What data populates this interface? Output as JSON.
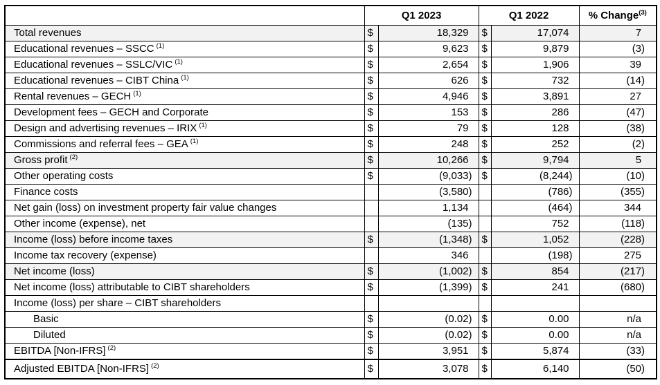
{
  "table": {
    "headers": {
      "label": "",
      "q1_2023": "Q1 2023",
      "q1_2022": "Q1 2022",
      "pct_change": "% Change",
      "pct_change_sup": "(3)"
    },
    "rows": [
      {
        "label": "Total revenues",
        "sup": "",
        "shaded": true,
        "indent": false,
        "thick_top": false,
        "d1": "$",
        "v1": "18,329",
        "d2": "$",
        "v2": "17,074",
        "pct": "7"
      },
      {
        "label": "Educational revenues – SSCC",
        "sup": "(1)",
        "shaded": false,
        "indent": false,
        "thick_top": false,
        "d1": "$",
        "v1": "9,623",
        "d2": "$",
        "v2": "9,879",
        "pct": "(3)"
      },
      {
        "label": "Educational revenues – SSLC/VIC",
        "sup": "(1)",
        "shaded": false,
        "indent": false,
        "thick_top": false,
        "d1": "$",
        "v1": "2,654",
        "d2": "$",
        "v2": "1,906",
        "pct": "39"
      },
      {
        "label": "Educational revenues – CIBT China",
        "sup": "(1)",
        "shaded": false,
        "indent": false,
        "thick_top": false,
        "d1": "$",
        "v1": "626",
        "d2": "$",
        "v2": "732",
        "pct": "(14)"
      },
      {
        "label": "Rental revenues – GECH",
        "sup": "(1)",
        "shaded": false,
        "indent": false,
        "thick_top": false,
        "d1": "$",
        "v1": "4,946",
        "d2": "$",
        "v2": "3,891",
        "pct": "27"
      },
      {
        "label": "Development fees – GECH and Corporate",
        "sup": "",
        "shaded": false,
        "indent": false,
        "thick_top": false,
        "d1": "$",
        "v1": "153",
        "d2": "$",
        "v2": "286",
        "pct": "(47)"
      },
      {
        "label": "Design and advertising revenues – IRIX",
        "sup": "(1)",
        "shaded": false,
        "indent": false,
        "thick_top": false,
        "d1": "$",
        "v1": "79",
        "d2": "$",
        "v2": "128",
        "pct": "(38)"
      },
      {
        "label": "Commissions and referral fees – GEA",
        "sup": "(1)",
        "shaded": false,
        "indent": false,
        "thick_top": false,
        "d1": "$",
        "v1": "248",
        "d2": "$",
        "v2": "252",
        "pct": "(2)"
      },
      {
        "label": "Gross profit",
        "sup": "(2)",
        "shaded": true,
        "indent": false,
        "thick_top": false,
        "d1": "$",
        "v1": "10,266",
        "d2": "$",
        "v2": "9,794",
        "pct": "5"
      },
      {
        "label": "Other operating costs",
        "sup": "",
        "shaded": false,
        "indent": false,
        "thick_top": false,
        "d1": "$",
        "v1": "(9,033)",
        "d2": "$",
        "v2": "(8,244)",
        "pct": "(10)"
      },
      {
        "label": "Finance costs",
        "sup": "",
        "shaded": false,
        "indent": false,
        "thick_top": false,
        "d1": "",
        "v1": "(3,580)",
        "d2": "",
        "v2": "(786)",
        "pct": "(355)"
      },
      {
        "label": "Net gain (loss) on investment property fair value changes",
        "sup": "",
        "shaded": false,
        "indent": false,
        "thick_top": false,
        "d1": "",
        "v1": "1,134",
        "d2": "",
        "v2": "(464)",
        "pct": "344"
      },
      {
        "label": "Other income (expense), net",
        "sup": "",
        "shaded": false,
        "indent": false,
        "thick_top": false,
        "d1": "",
        "v1": "(135)",
        "d2": "",
        "v2": "752",
        "pct": "(118)"
      },
      {
        "label": "Income (loss) before income taxes",
        "sup": "",
        "shaded": true,
        "indent": false,
        "thick_top": false,
        "d1": "$",
        "v1": "(1,348)",
        "d2": "$",
        "v2": "1,052",
        "pct": "(228)"
      },
      {
        "label": "Income tax recovery (expense)",
        "sup": "",
        "shaded": false,
        "indent": false,
        "thick_top": false,
        "d1": "",
        "v1": "346",
        "d2": "",
        "v2": "(198)",
        "pct": "275"
      },
      {
        "label": "Net income (loss)",
        "sup": "",
        "shaded": true,
        "indent": false,
        "thick_top": false,
        "d1": "$",
        "v1": "(1,002)",
        "d2": "$",
        "v2": "854",
        "pct": "(217)"
      },
      {
        "label": "Net income (loss) attributable to CIBT shareholders",
        "sup": "",
        "shaded": false,
        "indent": false,
        "thick_top": false,
        "d1": "$",
        "v1": "(1,399)",
        "d2": "$",
        "v2": "241",
        "pct": "(680)"
      },
      {
        "label": "Income (loss) per share – CIBT shareholders",
        "sup": "",
        "shaded": false,
        "indent": false,
        "thick_top": false,
        "d1": "",
        "v1": "",
        "d2": "",
        "v2": "",
        "pct": ""
      },
      {
        "label": "Basic",
        "sup": "",
        "shaded": false,
        "indent": true,
        "thick_top": false,
        "d1": "$",
        "v1": "(0.02)",
        "d2": "$",
        "v2": "0.00",
        "pct": "n/a"
      },
      {
        "label": "Diluted",
        "sup": "",
        "shaded": false,
        "indent": true,
        "thick_top": false,
        "d1": "$",
        "v1": "(0.02)",
        "d2": "$",
        "v2": "0.00",
        "pct": "n/a"
      },
      {
        "label": "EBITDA [Non-IFRS]",
        "sup": "(2)",
        "shaded": false,
        "indent": false,
        "thick_top": false,
        "d1": "$",
        "v1": "3,951",
        "d2": "$",
        "v2": "5,874",
        "pct": "(33)"
      },
      {
        "label": "Adjusted EBITDA [Non-IFRS]",
        "sup": "(2)",
        "shaded": false,
        "indent": false,
        "thick_top": true,
        "d1": "$",
        "v1": "3,078",
        "d2": "$",
        "v2": "6,140",
        "pct": "(50)"
      }
    ]
  }
}
